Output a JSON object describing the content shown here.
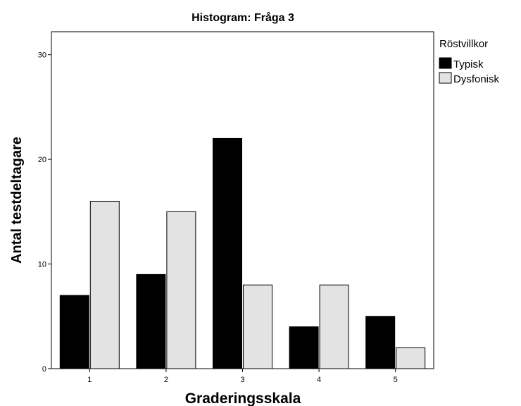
{
  "chart_data": {
    "type": "bar",
    "title": "Histogram: Fråga 3",
    "xlabel": "Graderingsskala",
    "ylabel": "Antal testdeltagare",
    "categories": [
      "1",
      "2",
      "3",
      "4",
      "5"
    ],
    "series": [
      {
        "name": "Typisk",
        "values": [
          7,
          9,
          22,
          4,
          5
        ],
        "color": "#000000"
      },
      {
        "name": "Dysfonisk",
        "values": [
          16,
          15,
          8,
          8,
          2
        ],
        "color": "#e3e3e3"
      }
    ],
    "ylim": [
      0,
      30
    ],
    "yticks": [
      "0",
      "10",
      "20",
      "30"
    ],
    "legend": {
      "title": "Röstvillkor",
      "placement": "right"
    },
    "grid": false
  }
}
